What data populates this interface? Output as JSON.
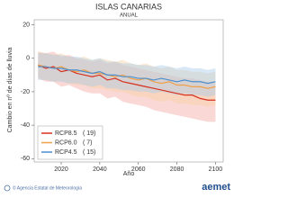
{
  "chart_data": {
    "type": "line",
    "title": "ISLAS CANARIAS",
    "subtitle": "ANUAL",
    "y_label": "Cambio en nº de días de lluvia",
    "x_label": "Año",
    "x": [
      2008,
      2012,
      2016,
      2020,
      2024,
      2028,
      2032,
      2036,
      2040,
      2044,
      2048,
      2052,
      2056,
      2060,
      2064,
      2068,
      2072,
      2076,
      2080,
      2084,
      2088,
      2092,
      2096,
      2100
    ],
    "xlim": [
      2006,
      2104
    ],
    "xticks": [
      2020,
      2040,
      2060,
      2080,
      2100
    ],
    "ylim": [
      -62,
      23
    ],
    "yticks": [
      20,
      0,
      -20,
      -40,
      -60
    ],
    "grid": false,
    "legend": "lower left",
    "series": [
      {
        "name": "RCP8.5",
        "count_label": "( 19)",
        "color": "#d7301f",
        "band_color": "#f5a9a3",
        "values": [
          -4,
          -6,
          -5,
          -8,
          -7,
          -9,
          -10,
          -11,
          -10,
          -13,
          -12,
          -14,
          -15,
          -16,
          -17,
          -18,
          -19,
          -20,
          -21,
          -22,
          -22,
          -24,
          -25,
          -25
        ],
        "low": [
          -12,
          -14,
          -14,
          -17,
          -16,
          -18,
          -20,
          -21,
          -21,
          -24,
          -23,
          -26,
          -27,
          -28,
          -29,
          -31,
          -32,
          -33,
          -34,
          -35,
          -36,
          -37,
          -38,
          -38
        ],
        "high": [
          4,
          3,
          4,
          1,
          2,
          0,
          -1,
          -2,
          -1,
          -3,
          -2,
          -4,
          -5,
          -6,
          -7,
          -8,
          -9,
          -10,
          -11,
          -12,
          -12,
          -13,
          -14,
          -14
        ]
      },
      {
        "name": "RCP6.0",
        "count_label": "(  7)",
        "color": "#f0a048",
        "band_color": "#f8d2a4",
        "values": [
          -4,
          -5,
          -6,
          -5,
          -7,
          -8,
          -7,
          -9,
          -9,
          -10,
          -11,
          -10,
          -12,
          -13,
          -12,
          -14,
          -15,
          -14,
          -16,
          -16,
          -17,
          -17,
          -18,
          -17
        ],
        "low": [
          -12,
          -13,
          -14,
          -13,
          -15,
          -16,
          -16,
          -18,
          -18,
          -19,
          -20,
          -20,
          -22,
          -23,
          -23,
          -25,
          -26,
          -25,
          -27,
          -27,
          -28,
          -28,
          -29,
          -28
        ],
        "high": [
          4,
          3,
          2,
          3,
          1,
          0,
          1,
          -1,
          0,
          -1,
          -2,
          -1,
          -3,
          -4,
          -3,
          -5,
          -6,
          -5,
          -7,
          -7,
          -8,
          -8,
          -9,
          -8
        ]
      },
      {
        "name": "RCP4.5",
        "count_label": "( 15)",
        "color": "#4a8fd0",
        "band_color": "#a9cdeb",
        "values": [
          -5,
          -5,
          -6,
          -6,
          -7,
          -7,
          -8,
          -9,
          -8,
          -10,
          -10,
          -11,
          -11,
          -12,
          -12,
          -13,
          -12,
          -13,
          -14,
          -13,
          -14,
          -14,
          -15,
          -14
        ],
        "low": [
          -13,
          -13,
          -14,
          -14,
          -15,
          -15,
          -16,
          -17,
          -16,
          -18,
          -18,
          -19,
          -19,
          -20,
          -20,
          -21,
          -20,
          -21,
          -22,
          -21,
          -22,
          -22,
          -23,
          -22
        ],
        "high": [
          3,
          3,
          2,
          2,
          1,
          1,
          0,
          -1,
          0,
          -2,
          -2,
          -3,
          -3,
          -4,
          -4,
          -5,
          -4,
          -5,
          -6,
          -5,
          -6,
          -6,
          -7,
          -6
        ]
      }
    ]
  },
  "footer": {
    "credit": "© Agencia Estatal de Meteorología",
    "logo": "aemet"
  }
}
